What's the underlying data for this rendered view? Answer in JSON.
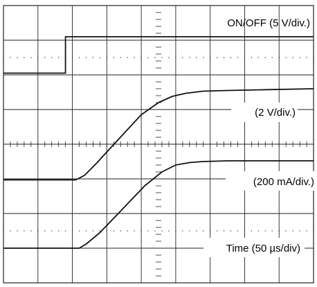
{
  "chart_data": {
    "type": "line",
    "title": "",
    "xlabel": "",
    "ylabel": "",
    "divisions": {
      "x": 9,
      "y": 8
    },
    "grid": true,
    "channel_labels": [
      {
        "id": "onoff",
        "text": "ON/OFF (5 V/div.)"
      },
      {
        "id": "voltage",
        "text": "(2 V/div.)"
      },
      {
        "id": "current",
        "text": "(200 mA/div.)"
      },
      {
        "id": "time",
        "text": "Time (50 µs/div)"
      }
    ],
    "series": [
      {
        "id": "onoff",
        "unit_per_div": "5 V",
        "x_div": [
          0,
          1.8,
          1.8,
          9
        ],
        "y_div": [
          6.05,
          6.05,
          7.1,
          7.1
        ]
      },
      {
        "id": "voltage",
        "unit_per_div": "2 V",
        "x_div": [
          0,
          2.1,
          2.35,
          2.7,
          3.3,
          4.0,
          4.5,
          4.9,
          5.3,
          5.8,
          6.5,
          7.5,
          9
        ],
        "y_div": [
          2.97,
          2.97,
          3.1,
          3.45,
          4.1,
          4.85,
          5.2,
          5.38,
          5.47,
          5.53,
          5.55,
          5.57,
          5.6
        ]
      },
      {
        "id": "current",
        "unit_per_div": "200 mA",
        "x_div": [
          0,
          2.2,
          2.4,
          2.8,
          3.4,
          4.1,
          4.6,
          5.0,
          5.4,
          5.8,
          6.5,
          7.5,
          9
        ],
        "y_div": [
          1.0,
          1.0,
          1.12,
          1.45,
          2.07,
          2.8,
          3.2,
          3.4,
          3.47,
          3.5,
          3.52,
          3.52,
          3.52
        ]
      }
    ],
    "colors": {
      "trace": "#111111",
      "grid": "#222222",
      "background": "#ffffff"
    }
  }
}
